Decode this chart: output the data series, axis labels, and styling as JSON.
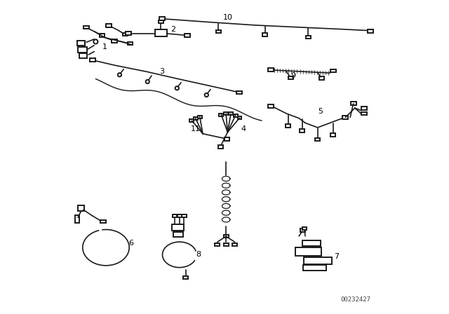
{
  "bg_color": "#ffffff",
  "line_color": "#1a1a1a",
  "label_color": "#000000",
  "part_number": "00232427",
  "lw": 1.2,
  "connector_lw": 1.4
}
